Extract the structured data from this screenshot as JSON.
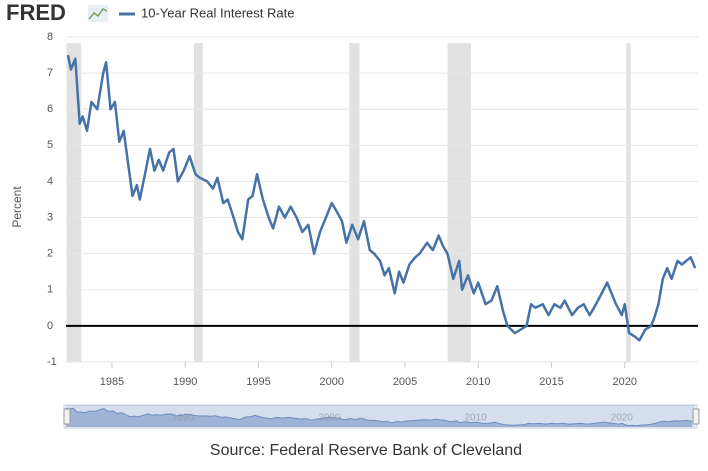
{
  "chart_data": {
    "type": "line",
    "logo": "FRED",
    "y_label": "Percent",
    "source": "Source: Federal Reserve Bank of Cleveland",
    "x": [
      1982.0,
      1982.2,
      1982.5,
      1982.8,
      1983.0,
      1983.3,
      1983.6,
      1984.0,
      1984.4,
      1984.6,
      1984.9,
      1985.2,
      1985.5,
      1985.8,
      1986.1,
      1986.4,
      1986.7,
      1986.9,
      1987.3,
      1987.6,
      1987.9,
      1988.2,
      1988.5,
      1988.9,
      1989.2,
      1989.5,
      1989.9,
      1990.3,
      1990.7,
      1991.0,
      1991.5,
      1991.9,
      1992.2,
      1992.6,
      1992.9,
      1993.3,
      1993.6,
      1993.9,
      1994.3,
      1994.6,
      1994.9,
      1995.3,
      1995.7,
      1996.0,
      1996.4,
      1996.8,
      1997.2,
      1997.6,
      1998.0,
      1998.4,
      1998.8,
      1999.2,
      1999.6,
      2000.0,
      2000.3,
      2000.7,
      2001.0,
      2001.4,
      2001.8,
      2002.2,
      2002.6,
      2002.9,
      2003.3,
      2003.6,
      2003.9,
      2004.3,
      2004.6,
      2004.9,
      2005.3,
      2005.7,
      2006.0,
      2006.5,
      2006.9,
      2007.3,
      2007.6,
      2007.9,
      2008.3,
      2008.7,
      2008.9,
      2009.3,
      2009.7,
      2010.0,
      2010.5,
      2010.9,
      2011.3,
      2011.7,
      2012.0,
      2012.5,
      2012.9,
      2013.3,
      2013.6,
      2013.9,
      2014.4,
      2014.8,
      2015.2,
      2015.6,
      2015.9,
      2016.4,
      2016.8,
      2017.2,
      2017.6,
      2017.9,
      2018.3,
      2018.8,
      2019.0,
      2019.4,
      2019.8,
      2020.0,
      2020.3,
      2020.7,
      2021.0,
      2021.4,
      2021.8,
      2022.0,
      2022.3,
      2022.6,
      2022.9,
      2023.2,
      2023.6,
      2023.9,
      2024.2,
      2024.5,
      2024.8
    ],
    "series": [
      {
        "name": "10-Year Real Interest Rate",
        "color": "#4572a7",
        "values": [
          7.5,
          7.1,
          7.4,
          5.6,
          5.8,
          5.4,
          6.2,
          6.0,
          7.0,
          7.3,
          6.0,
          6.2,
          5.1,
          5.4,
          4.5,
          3.6,
          3.9,
          3.5,
          4.3,
          4.9,
          4.3,
          4.6,
          4.3,
          4.8,
          4.9,
          4.0,
          4.3,
          4.7,
          4.2,
          4.1,
          4.0,
          3.8,
          4.1,
          3.4,
          3.5,
          3.0,
          2.6,
          2.4,
          3.5,
          3.6,
          4.2,
          3.5,
          3.0,
          2.7,
          3.3,
          3.0,
          3.3,
          3.0,
          2.6,
          2.8,
          2.0,
          2.6,
          3.0,
          3.4,
          3.2,
          2.9,
          2.3,
          2.8,
          2.4,
          2.9,
          2.1,
          2.0,
          1.8,
          1.4,
          1.6,
          0.9,
          1.5,
          1.2,
          1.7,
          1.9,
          2.0,
          2.3,
          2.1,
          2.5,
          2.2,
          2.0,
          1.3,
          1.8,
          1.0,
          1.4,
          0.9,
          1.2,
          0.6,
          0.7,
          1.1,
          0.4,
          0.0,
          -0.2,
          -0.1,
          0.0,
          0.6,
          0.5,
          0.6,
          0.3,
          0.6,
          0.5,
          0.7,
          0.3,
          0.5,
          0.6,
          0.3,
          0.5,
          0.8,
          1.2,
          1.0,
          0.6,
          0.3,
          0.6,
          -0.2,
          -0.3,
          -0.4,
          -0.1,
          0.0,
          0.2,
          0.6,
          1.3,
          1.6,
          1.3,
          1.8,
          1.7,
          1.8,
          1.9,
          1.6
        ]
      }
    ],
    "xlim": [
      1982,
      2025
    ],
    "ylim": [
      -1,
      8
    ],
    "xticks": [
      1985,
      1990,
      1995,
      2000,
      2005,
      2010,
      2015,
      2020
    ],
    "yticks": [
      -1,
      0,
      1,
      2,
      3,
      4,
      5,
      6,
      7,
      8
    ],
    "recessions": [
      [
        1981.9,
        1982.9
      ],
      [
        1990.6,
        1991.2
      ],
      [
        2001.2,
        2001.9
      ],
      [
        2007.9,
        2009.5
      ],
      [
        2020.1,
        2020.4
      ]
    ],
    "grid": true,
    "zero_line": true,
    "navigator_ticks": [
      1990,
      2000,
      2010,
      2020
    ]
  }
}
